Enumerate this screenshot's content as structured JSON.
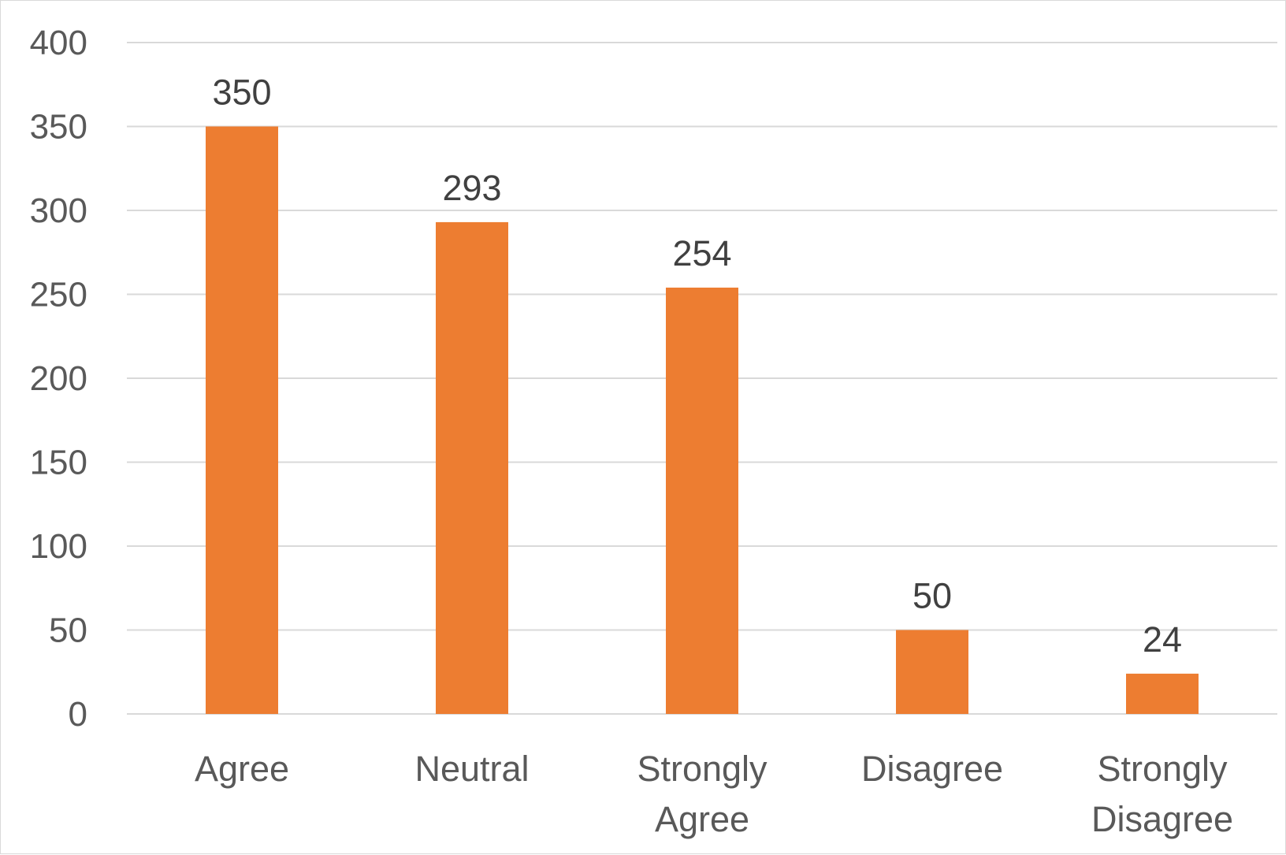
{
  "chart_data": {
    "type": "bar",
    "categories": [
      [
        "Agree"
      ],
      [
        "Neutral"
      ],
      [
        "Strongly",
        "Agree"
      ],
      [
        "Disagree"
      ],
      [
        "Strongly",
        "Disagree"
      ]
    ],
    "values": [
      350,
      293,
      254,
      50,
      24
    ],
    "data_labels": [
      "350",
      "293",
      "254",
      "50",
      "24"
    ],
    "yticks": [
      0,
      50,
      100,
      150,
      200,
      250,
      300,
      350,
      400
    ],
    "ylim": [
      0,
      400
    ],
    "title": "",
    "xlabel": "",
    "ylabel": "",
    "grid": true,
    "legend": "none",
    "colors": {
      "bar": "#ED7D31",
      "gridline": "#D9D9D9",
      "axis_text": "#595959",
      "data_label_text": "#404040"
    }
  }
}
